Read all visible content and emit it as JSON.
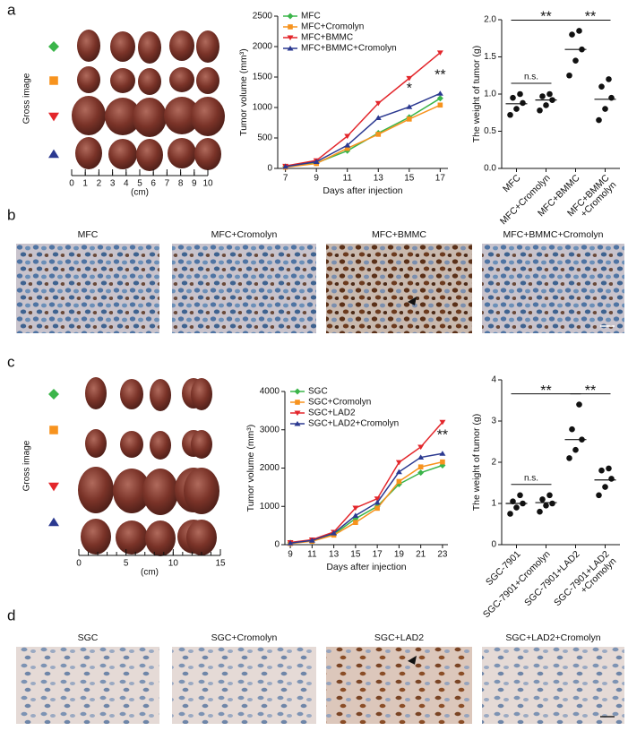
{
  "panel_labels": [
    "a",
    "b",
    "c",
    "d"
  ],
  "gross_images": [
    {
      "label": "Gross image",
      "ruler_ticks": [
        0,
        1,
        2,
        3,
        4,
        5,
        6,
        7,
        8,
        9,
        10
      ],
      "ruler_unit": "(cm)"
    },
    {
      "label": "Gross image",
      "ruler_ticks": [
        0,
        5,
        10,
        15
      ],
      "ruler_unit": "(cm)"
    }
  ],
  "histology_titles": [
    [
      "MFC",
      "MFC+Cromolyn",
      "MFC+BMMC",
      "MFC+BMMC+Cromolyn"
    ],
    [
      "SGC",
      "SGC+Cromolyn",
      "SGC+LAD2",
      "SGC+LAD2+Cromolyn"
    ]
  ],
  "chart_data": [
    {
      "type": "line",
      "ylabel": "Tumor volume (mm³)",
      "xlabel": "Days after injection",
      "x": [
        7,
        9,
        11,
        13,
        15,
        17
      ],
      "xlim": [
        6.5,
        17.5
      ],
      "xticks": [
        7,
        9,
        11,
        13,
        15,
        17
      ],
      "ylim": [
        0,
        2500
      ],
      "yticks": [
        0,
        500,
        1000,
        1500,
        2000,
        2500
      ],
      "series": [
        {
          "name": "MFC",
          "color": "#3bb54a",
          "marker": "diamond",
          "values": [
            30,
            90,
            290,
            580,
            840,
            1150
          ]
        },
        {
          "name": "MFC+Cromolyn",
          "color": "#f7931e",
          "marker": "square",
          "values": [
            20,
            80,
            330,
            560,
            810,
            1040
          ]
        },
        {
          "name": "MFC+BMMC",
          "color": "#e3262b",
          "marker": "triangle-down",
          "values": [
            40,
            130,
            530,
            1070,
            1480,
            1900
          ]
        },
        {
          "name": "MFC+BMMC+Cromolyn",
          "color": "#2b3990",
          "marker": "triangle-up",
          "values": [
            30,
            110,
            380,
            830,
            1010,
            1230
          ]
        }
      ],
      "annotations": [
        {
          "text": "*",
          "x": 15
        },
        {
          "text": "**",
          "x": 17
        }
      ]
    },
    {
      "type": "dot",
      "ylabel": "The weight of tumor (g)",
      "categories": [
        [
          "MFC"
        ],
        [
          "MFC+Cromolyn"
        ],
        [
          "MFC+BMMC"
        ],
        [
          "MFC+BMMC",
          "+Cromolyn"
        ]
      ],
      "ylim": [
        0,
        2
      ],
      "yticks": [
        {
          "value": 0,
          "label": "0.0"
        },
        0.5,
        {
          "value": 1,
          "label": "1.0"
        },
        1.5,
        {
          "value": 2,
          "label": "2.0"
        }
      ],
      "values": [
        [
          0.72,
          0.8,
          0.88,
          0.95,
          1.0
        ],
        [
          0.78,
          0.85,
          0.92,
          0.97,
          1.0
        ],
        [
          1.25,
          1.45,
          1.6,
          1.8,
          1.85
        ],
        [
          0.65,
          0.8,
          0.95,
          1.1,
          1.2
        ]
      ],
      "means": [
        0.87,
        0.92,
        1.6,
        0.93
      ],
      "comparisons": [
        {
          "from": 0,
          "to": 1,
          "text": "n.s."
        },
        {
          "from": 0,
          "to": 2,
          "text": "**"
        },
        {
          "from": 2,
          "to": 3,
          "text": "**"
        }
      ]
    },
    {
      "type": "line",
      "ylabel": "Tumor volume (mm³)",
      "xlabel": "Days after injection",
      "x": [
        9,
        11,
        13,
        15,
        17,
        19,
        21,
        23
      ],
      "xlim": [
        8.5,
        23.5
      ],
      "xticks": [
        9,
        11,
        13,
        15,
        17,
        19,
        21,
        23
      ],
      "ylim": [
        0,
        4000
      ],
      "yticks": [
        0,
        1000,
        2000,
        3000,
        4000
      ],
      "series": [
        {
          "name": "SGC",
          "color": "#3bb54a",
          "marker": "diamond",
          "values": [
            50,
            100,
            270,
            680,
            1000,
            1580,
            1880,
            2070
          ]
        },
        {
          "name": "SGC+Cromolyn",
          "color": "#f7931e",
          "marker": "square",
          "values": [
            30,
            90,
            250,
            580,
            950,
            1650,
            2030,
            2160
          ]
        },
        {
          "name": "SGC+LAD2",
          "color": "#e3262b",
          "marker": "triangle-down",
          "values": [
            60,
            130,
            330,
            960,
            1200,
            2150,
            2550,
            3200
          ]
        },
        {
          "name": "SGC+LAD2+Cromolyn",
          "color": "#2b3990",
          "marker": "triangle-up",
          "values": [
            40,
            110,
            300,
            760,
            1100,
            1900,
            2280,
            2380
          ]
        }
      ],
      "annotations": [
        {
          "text": "**",
          "x": 23
        }
      ]
    },
    {
      "type": "dot",
      "ylabel": "The weight of tumor (g)",
      "categories": [
        [
          "SGC-7901"
        ],
        [
          "SGC-7901+Cromolyn"
        ],
        [
          "SGC-7901+LAD2"
        ],
        [
          "SGC-7901+LAD2",
          "+Cromolyn"
        ]
      ],
      "ylim": [
        0,
        4
      ],
      "yticks": [
        0,
        1,
        2,
        3,
        4
      ],
      "values": [
        [
          0.75,
          0.9,
          1.0,
          1.05,
          1.2
        ],
        [
          0.8,
          0.95,
          1.0,
          1.1,
          1.2
        ],
        [
          2.1,
          2.3,
          2.55,
          2.8,
          3.4
        ],
        [
          1.2,
          1.4,
          1.6,
          1.8,
          1.85
        ]
      ],
      "means": [
        1.0,
        1.02,
        2.55,
        1.57
      ],
      "comparisons": [
        {
          "from": 0,
          "to": 1,
          "text": "n.s."
        },
        {
          "from": 0,
          "to": 2,
          "text": "**"
        },
        {
          "from": 2,
          "to": 3,
          "text": "**"
        }
      ]
    }
  ]
}
